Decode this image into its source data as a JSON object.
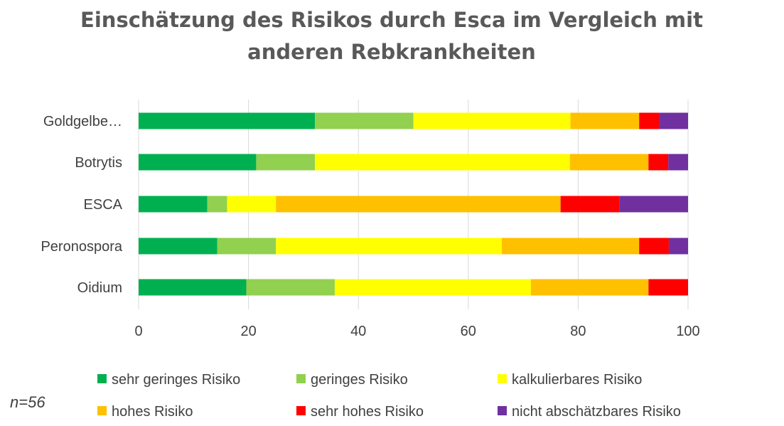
{
  "chart_data": {
    "type": "bar",
    "orientation": "horizontal",
    "stacked": true,
    "title_lines": [
      "Einschätzung des Risikos durch Esca im Vergleich mit",
      "anderen Rebkrankheiten"
    ],
    "categories": [
      "Goldgelbe…",
      "Botrytis",
      "ESCA",
      "Peronospora",
      "Oidium"
    ],
    "xlim": [
      0,
      100
    ],
    "xticks": [
      "0",
      "20",
      "40",
      "60",
      "80",
      "100"
    ],
    "xtick_values": [
      0,
      20,
      40,
      60,
      80,
      100
    ],
    "grid": true,
    "legend_position": "bottom",
    "series": [
      {
        "name": "sehr geringes Risiko",
        "color": "#00B050",
        "values": [
          32.1,
          21.4,
          12.5,
          14.3,
          19.6
        ]
      },
      {
        "name": "geringes Risiko",
        "color": "#92D050",
        "values": [
          17.9,
          10.7,
          3.6,
          10.7,
          16.1
        ]
      },
      {
        "name": "kalkulierbares Risiko",
        "color": "#FFFF00",
        "values": [
          28.6,
          46.4,
          8.9,
          41.1,
          35.7
        ]
      },
      {
        "name": "hohes Risiko",
        "color": "#FFC000",
        "values": [
          12.5,
          14.3,
          51.8,
          25.0,
          21.4
        ]
      },
      {
        "name": "sehr hohes Risiko",
        "color": "#FF0000",
        "values": [
          3.6,
          3.6,
          10.7,
          5.4,
          7.2
        ]
      },
      {
        "name": "nicht abschätzbares Risiko",
        "color": "#7030A0",
        "values": [
          5.3,
          3.6,
          12.5,
          3.5,
          0.0
        ]
      }
    ],
    "note": "n=56"
  }
}
